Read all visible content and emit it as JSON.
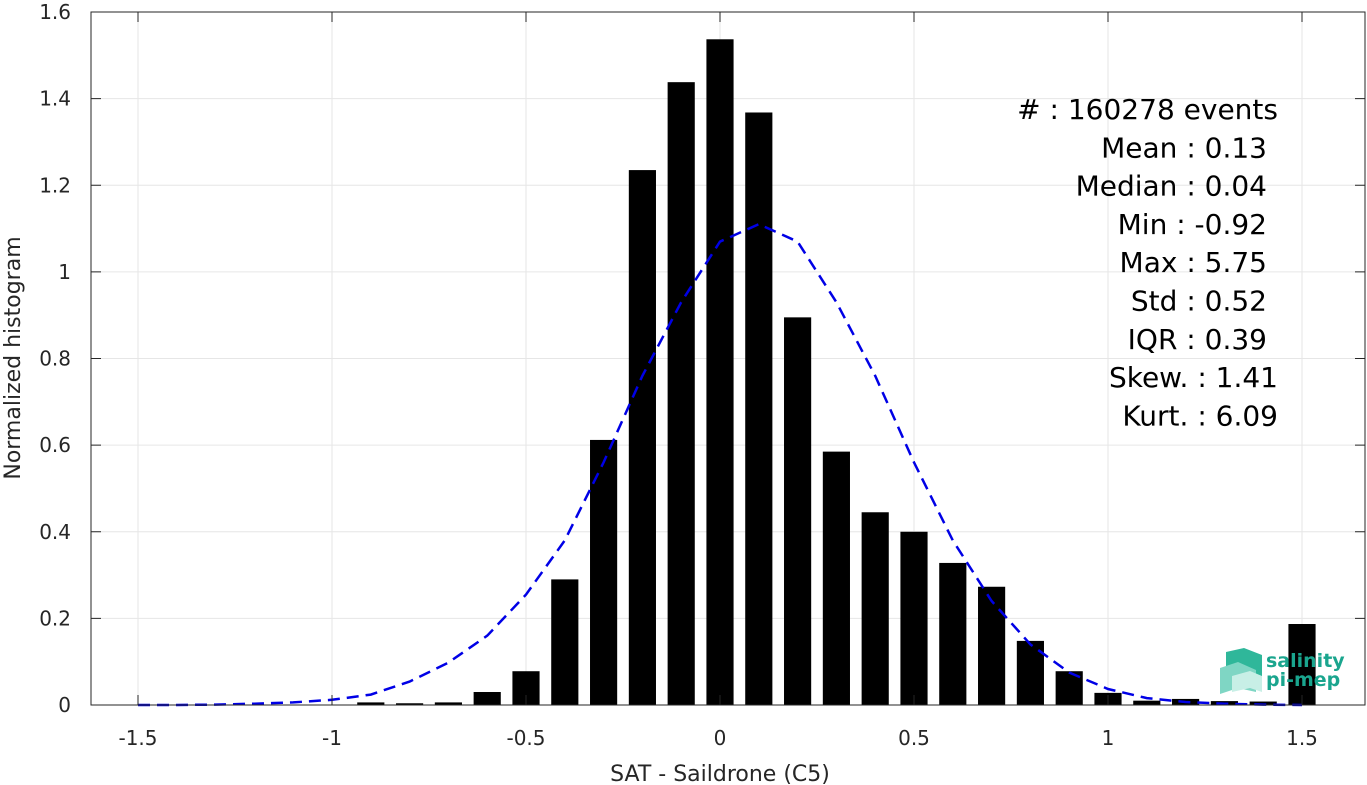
{
  "chart_data": {
    "type": "bar",
    "xlabel": "SAT - Saildrone (C5)",
    "ylabel": "Normalized histogram",
    "xlim": [
      -1.55,
      1.55
    ],
    "ylim": [
      0,
      1.6
    ],
    "grid": true,
    "x_ticks": [
      -1.5,
      -1,
      -0.5,
      0,
      0.5,
      1,
      1.5
    ],
    "x_tick_labels": [
      "-1.5",
      "-1",
      "-0.5",
      "0",
      "0.5",
      "1",
      "1.5"
    ],
    "y_ticks": [
      0,
      0.2,
      0.4,
      0.6,
      0.8,
      1,
      1.2,
      1.4,
      1.6
    ],
    "y_tick_labels": [
      "0",
      "0.2",
      "0.4",
      "0.6",
      "0.8",
      "1",
      "1.2",
      "1.4",
      "1.6"
    ],
    "bar_width": 0.07,
    "bar_color": "#000000",
    "bars": {
      "x": [
        -0.9,
        -0.8,
        -0.7,
        -0.6,
        -0.5,
        -0.4,
        -0.3,
        -0.2,
        -0.1,
        0.0,
        0.1,
        0.2,
        0.3,
        0.4,
        0.5,
        0.6,
        0.7,
        0.8,
        0.9,
        1.0,
        1.1,
        1.2,
        1.3,
        1.4,
        1.5
      ],
      "values": [
        0.006,
        0.004,
        0.006,
        0.03,
        0.078,
        0.29,
        0.612,
        1.235,
        1.438,
        1.537,
        1.368,
        0.895,
        0.585,
        0.445,
        0.4,
        0.328,
        0.273,
        0.148,
        0.078,
        0.028,
        0.01,
        0.014,
        0.009,
        0.008,
        0.187
      ]
    },
    "fit_curve": {
      "style": "dashed",
      "color": "#0000e6",
      "x": [
        -1.5,
        -1.4,
        -1.3,
        -1.2,
        -1.1,
        -1.0,
        -0.9,
        -0.8,
        -0.7,
        -0.6,
        -0.5,
        -0.4,
        -0.3,
        -0.2,
        -0.1,
        0.0,
        0.1,
        0.2,
        0.3,
        0.4,
        0.5,
        0.6,
        0.7,
        0.8,
        0.9,
        1.0,
        1.1,
        1.2,
        1.3,
        1.4,
        1.5
      ],
      "values": [
        0.0,
        0.0,
        0.001,
        0.003,
        0.006,
        0.012,
        0.024,
        0.054,
        0.098,
        0.16,
        0.255,
        0.38,
        0.56,
        0.76,
        0.93,
        1.07,
        1.11,
        1.07,
        0.93,
        0.76,
        0.56,
        0.38,
        0.24,
        0.14,
        0.075,
        0.037,
        0.016,
        0.007,
        0.003,
        0.001,
        0.0
      ]
    },
    "annotation_lines": [
      "#  : 160278 events",
      "Mean : 0.13",
      "Median : 0.04",
      "Min : -0.92",
      "Max : 5.75",
      "Std : 0.52",
      "IQR : 0.39",
      "Skew. : 1.41",
      "Kurt. : 6.09"
    ]
  },
  "logo": {
    "line1": "salinity",
    "line2": "pi-mep",
    "color": "#1aa58e"
  }
}
